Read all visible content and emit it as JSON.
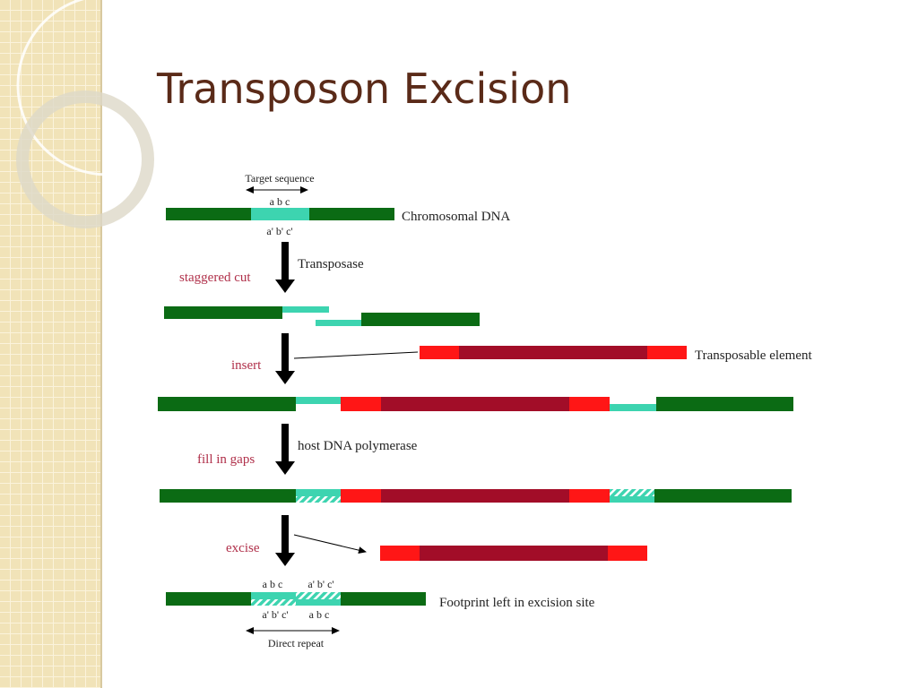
{
  "header": {
    "title": "Transposon Excision"
  },
  "diagram": {
    "target_sequence": "Target sequence",
    "row1_top": "a b c",
    "row1_bottom": "a' b' c'",
    "chromosomal_dna": "Chromosomal DNA",
    "transposase": "Transposase",
    "staggered_cut": "staggered cut",
    "insert": "insert",
    "transposable_element": "Transposable element",
    "host_polymerase": "host DNA polymerase",
    "fill_in_gaps": "fill in gaps",
    "excise": "excise",
    "footprint_top_left": "a b c",
    "footprint_top_right": "a' b' c'",
    "footprint_bottom_left": "a' b' c'",
    "footprint_bottom_right": "a b c",
    "footprint": "Footprint left in excision site",
    "direct_repeat": "Direct repeat"
  }
}
